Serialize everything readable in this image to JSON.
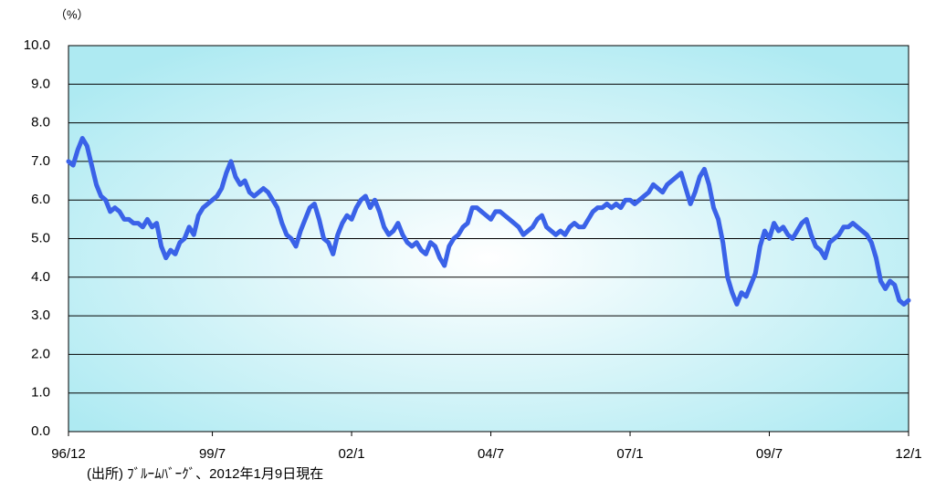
{
  "chart_data": {
    "type": "line",
    "y_label": "（%）",
    "note": "(出所) ﾌﾞﾙｰﾑﾊﾞｰｸﾞ、2012年1月9日現在",
    "x": [
      "1996-12",
      "1997-01",
      "1997-02",
      "1997-03",
      "1997-04",
      "1997-05",
      "1997-06",
      "1997-07",
      "1997-08",
      "1997-09",
      "1997-10",
      "1997-11",
      "1997-12",
      "1998-01",
      "1998-02",
      "1998-03",
      "1998-04",
      "1998-05",
      "1998-06",
      "1998-07",
      "1998-08",
      "1998-09",
      "1998-10",
      "1998-11",
      "1998-12",
      "1999-01",
      "1999-02",
      "1999-03",
      "1999-04",
      "1999-05",
      "1999-06",
      "1999-07",
      "1999-08",
      "1999-09",
      "1999-10",
      "1999-11",
      "1999-12",
      "2000-01",
      "2000-02",
      "2000-03",
      "2000-04",
      "2000-05",
      "2000-06",
      "2000-07",
      "2000-08",
      "2000-09",
      "2000-10",
      "2000-11",
      "2000-12",
      "2001-01",
      "2001-02",
      "2001-03",
      "2001-04",
      "2001-05",
      "2001-06",
      "2001-07",
      "2001-08",
      "2001-09",
      "2001-10",
      "2001-11",
      "2001-12",
      "2002-01",
      "2002-02",
      "2002-03",
      "2002-04",
      "2002-05",
      "2002-06",
      "2002-07",
      "2002-08",
      "2002-09",
      "2002-10",
      "2002-11",
      "2002-12",
      "2003-01",
      "2003-02",
      "2003-03",
      "2003-04",
      "2003-05",
      "2003-06",
      "2003-07",
      "2003-08",
      "2003-09",
      "2003-10",
      "2003-11",
      "2003-12",
      "2004-01",
      "2004-02",
      "2004-03",
      "2004-04",
      "2004-05",
      "2004-06",
      "2004-07",
      "2004-08",
      "2004-09",
      "2004-10",
      "2004-11",
      "2004-12",
      "2005-01",
      "2005-02",
      "2005-03",
      "2005-04",
      "2005-05",
      "2005-06",
      "2005-07",
      "2005-08",
      "2005-09",
      "2005-10",
      "2005-11",
      "2005-12",
      "2006-01",
      "2006-02",
      "2006-03",
      "2006-04",
      "2006-05",
      "2006-06",
      "2006-07",
      "2006-08",
      "2006-09",
      "2006-10",
      "2006-11",
      "2006-12",
      "2007-01",
      "2007-02",
      "2007-03",
      "2007-04",
      "2007-05",
      "2007-06",
      "2007-07",
      "2007-08",
      "2007-09",
      "2007-10",
      "2007-11",
      "2007-12",
      "2008-01",
      "2008-02",
      "2008-03",
      "2008-04",
      "2008-05",
      "2008-06",
      "2008-07",
      "2008-08",
      "2008-09",
      "2008-10",
      "2008-11",
      "2008-12",
      "2009-01",
      "2009-02",
      "2009-03",
      "2009-04",
      "2009-05",
      "2009-06",
      "2009-07",
      "2009-08",
      "2009-09",
      "2009-10",
      "2009-11",
      "2009-12",
      "2010-01",
      "2010-02",
      "2010-03",
      "2010-04",
      "2010-05",
      "2010-06",
      "2010-07",
      "2010-08",
      "2010-09",
      "2010-10",
      "2010-11",
      "2010-12",
      "2011-01",
      "2011-02",
      "2011-03",
      "2011-04",
      "2011-05",
      "2011-06",
      "2011-07",
      "2011-08",
      "2011-09",
      "2011-10",
      "2011-11",
      "2011-12",
      "2012-01"
    ],
    "series": [
      {
        "color": "#3a62e8",
        "values": [
          7.0,
          6.9,
          7.3,
          7.6,
          7.4,
          6.9,
          6.4,
          6.1,
          6.0,
          5.7,
          5.8,
          5.7,
          5.5,
          5.5,
          5.4,
          5.4,
          5.3,
          5.5,
          5.3,
          5.4,
          4.8,
          4.5,
          4.7,
          4.6,
          4.9,
          5.0,
          5.3,
          5.1,
          5.6,
          5.8,
          5.9,
          6.0,
          6.1,
          6.3,
          6.7,
          7.0,
          6.6,
          6.4,
          6.5,
          6.2,
          6.1,
          6.2,
          6.3,
          6.2,
          6.0,
          5.8,
          5.4,
          5.1,
          5.0,
          4.8,
          5.2,
          5.5,
          5.8,
          5.9,
          5.5,
          5.0,
          4.9,
          4.6,
          5.1,
          5.4,
          5.6,
          5.5,
          5.8,
          6.0,
          6.1,
          5.8,
          6.0,
          5.7,
          5.3,
          5.1,
          5.2,
          5.4,
          5.1,
          4.9,
          4.8,
          4.9,
          4.7,
          4.6,
          4.9,
          4.8,
          4.5,
          4.3,
          4.8,
          5.0,
          5.1,
          5.3,
          5.4,
          5.8,
          5.8,
          5.7,
          5.6,
          5.5,
          5.7,
          5.7,
          5.6,
          5.5,
          5.4,
          5.3,
          5.1,
          5.2,
          5.3,
          5.5,
          5.6,
          5.3,
          5.2,
          5.1,
          5.2,
          5.1,
          5.3,
          5.4,
          5.3,
          5.3,
          5.5,
          5.7,
          5.8,
          5.8,
          5.9,
          5.8,
          5.9,
          5.8,
          6.0,
          6.0,
          5.9,
          6.0,
          6.1,
          6.2,
          6.4,
          6.3,
          6.2,
          6.4,
          6.5,
          6.6,
          6.7,
          6.3,
          5.9,
          6.2,
          6.6,
          6.8,
          6.4,
          5.8,
          5.5,
          4.9,
          4.0,
          3.6,
          3.3,
          3.6,
          3.5,
          3.8,
          4.1,
          4.8,
          5.2,
          5.0,
          5.4,
          5.2,
          5.3,
          5.1,
          5.0,
          5.2,
          5.4,
          5.5,
          5.1,
          4.8,
          4.7,
          4.5,
          4.9,
          5.0,
          5.1,
          5.3,
          5.3,
          5.4,
          5.3,
          5.2,
          5.1,
          4.9,
          4.5,
          3.9,
          3.7,
          3.9,
          3.8,
          3.4,
          3.3,
          3.4
        ]
      }
    ],
    "xlim": [
      "1996-12",
      "2012-01"
    ],
    "xticks": [
      {
        "value": "1996-12",
        "label": "96/12"
      },
      {
        "value": "1999-07",
        "label": "99/7"
      },
      {
        "value": "2002-01",
        "label": "02/1"
      },
      {
        "value": "2004-07",
        "label": "04/7"
      },
      {
        "value": "2007-01",
        "label": "07/1"
      },
      {
        "value": "2009-07",
        "label": "09/7"
      },
      {
        "value": "2012-01",
        "label": "12/1"
      }
    ],
    "ylim": [
      0,
      10
    ],
    "yticks": [
      {
        "value": 0,
        "label": "0.0"
      },
      {
        "value": 1,
        "label": "1.0"
      },
      {
        "value": 2,
        "label": "2.0"
      },
      {
        "value": 3,
        "label": "3.0"
      },
      {
        "value": 4,
        "label": "4.0"
      },
      {
        "value": 5,
        "label": "5.0"
      },
      {
        "value": 6,
        "label": "6.0"
      },
      {
        "value": 7,
        "label": "7.0"
      },
      {
        "value": 8,
        "label": "8.0"
      },
      {
        "value": 9,
        "label": "9.0"
      },
      {
        "value": 10,
        "label": "10.0"
      }
    ],
    "grid": true
  }
}
